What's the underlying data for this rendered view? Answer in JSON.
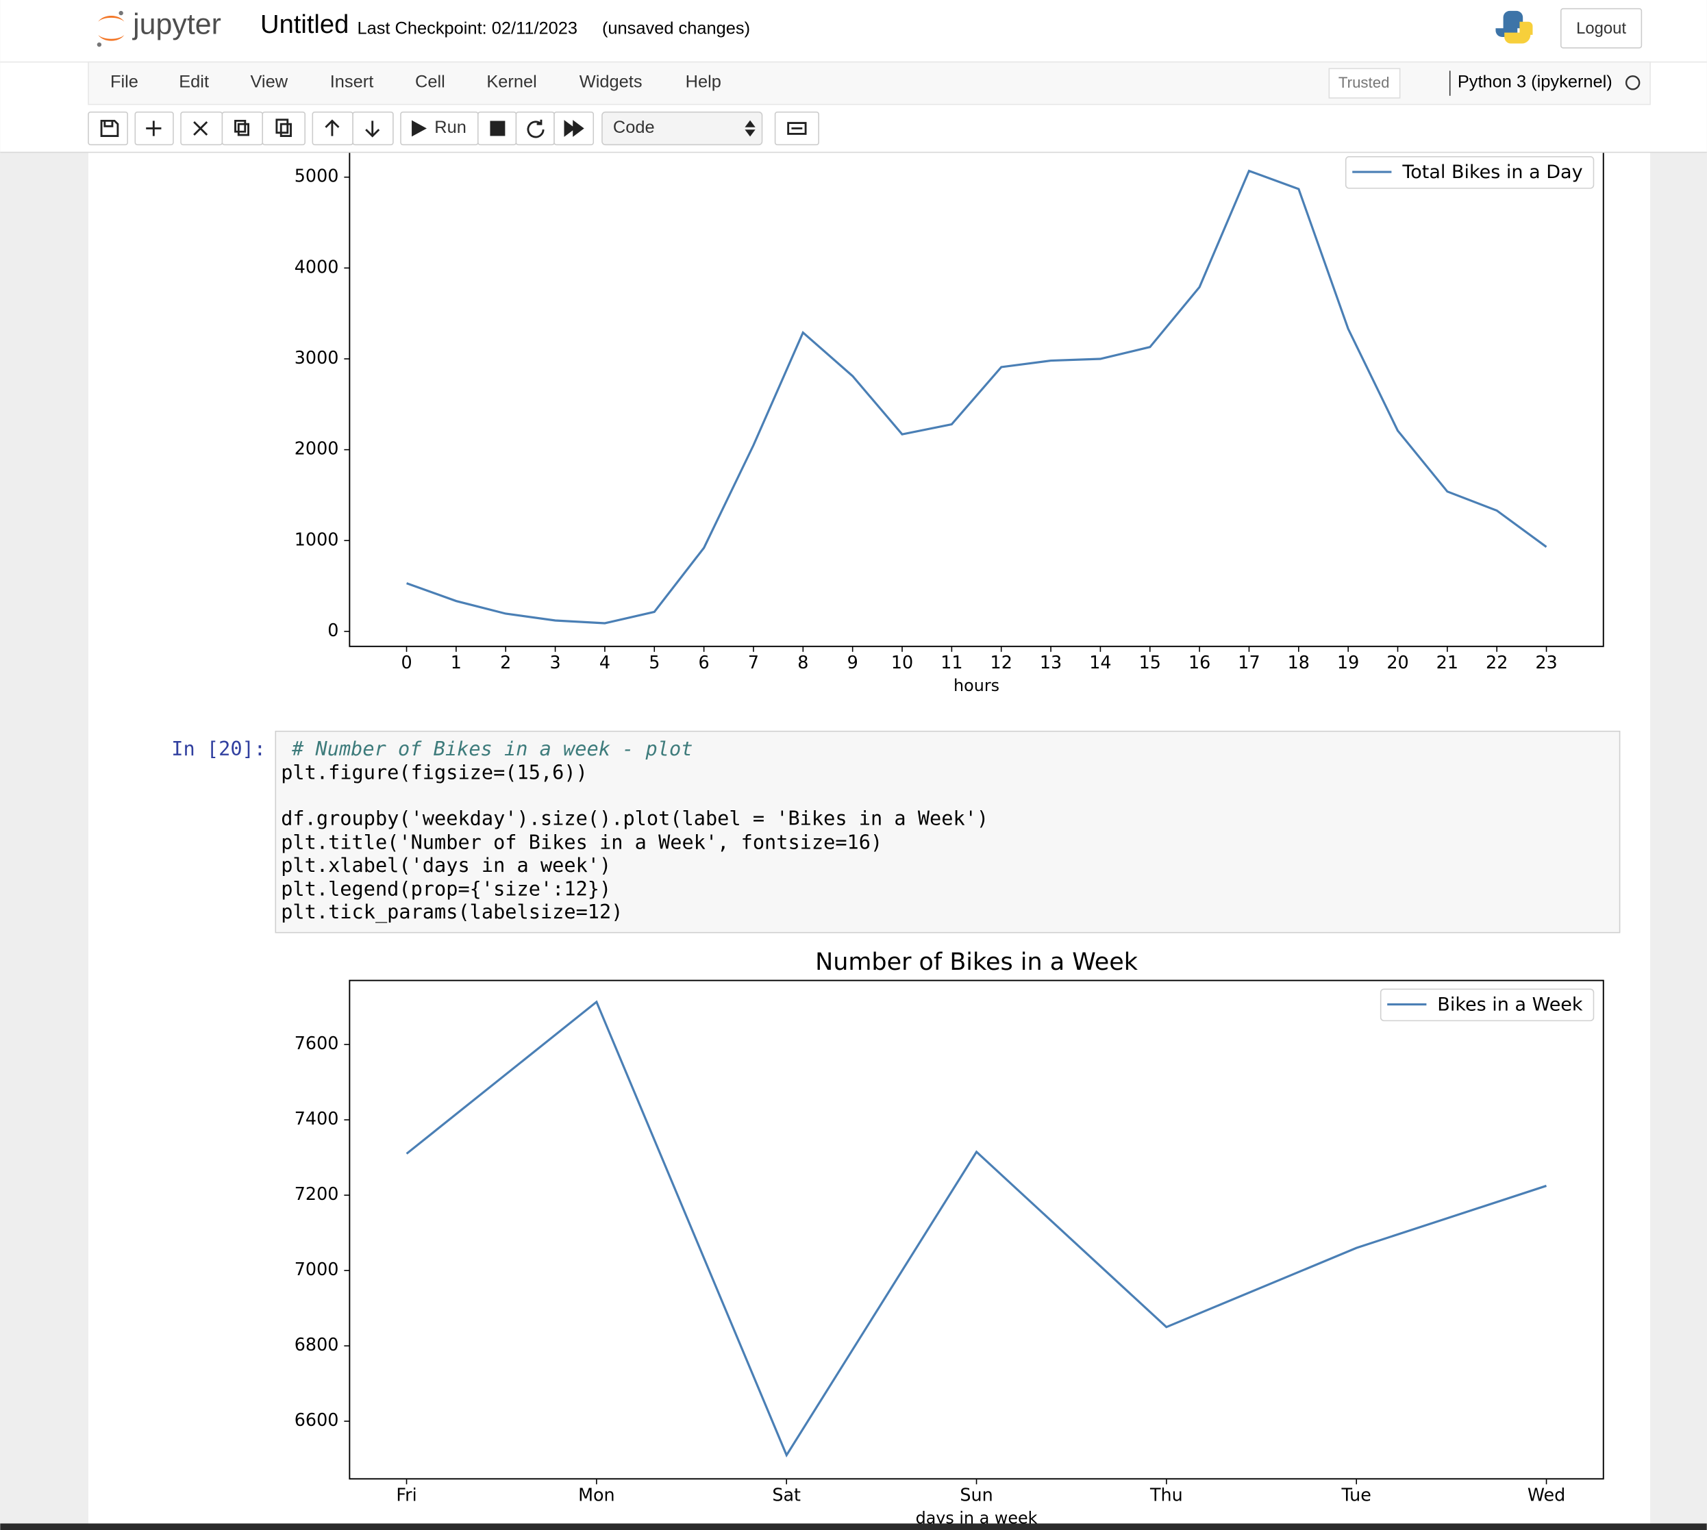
{
  "header": {
    "logo": "jupyter",
    "notebook_name": "Untitled",
    "checkpoint": "Last Checkpoint: 02/11/2023",
    "status": "(unsaved changes)",
    "logout": "Logout"
  },
  "menu": {
    "items": [
      "File",
      "Edit",
      "View",
      "Insert",
      "Cell",
      "Kernel",
      "Widgets",
      "Help"
    ],
    "trusted": "Trusted",
    "kernel": "Python 3 (ipykernel)"
  },
  "toolbar": {
    "run": "Run",
    "cell_type": "Code"
  },
  "cell": {
    "prompt": "In [20]:",
    "lines": [
      "# Number of Bikes in a week - plot",
      "plt.figure(figsize=(15,6))",
      "df.groupby('weekday').size().plot(label = 'Bikes in a Week')",
      "plt.title('Number of Bikes in a Week', fontsize=16)",
      "plt.xlabel('days in a week')",
      "plt.legend(prop={'size':12})",
      "plt.tick_params(labelsize=12)"
    ]
  },
  "chart_data": [
    {
      "type": "line",
      "x_label": "hours",
      "x": [
        0,
        1,
        2,
        3,
        4,
        5,
        6,
        7,
        8,
        9,
        10,
        11,
        12,
        13,
        14,
        15,
        16,
        17,
        18,
        19,
        20,
        21,
        22,
        23
      ],
      "series": [
        {
          "name": "Total Bikes in a Day",
          "color": "#4a7fb5",
          "values": [
            530,
            335,
            195,
            120,
            90,
            215,
            920,
            2050,
            3290,
            2810,
            2170,
            2280,
            2910,
            2980,
            3000,
            3130,
            3790,
            5070,
            4870,
            3330,
            2210,
            1540,
            1330,
            930
          ]
        }
      ],
      "xlim": [
        -1.15,
        24.15
      ],
      "xticks": [
        0,
        1,
        2,
        3,
        4,
        5,
        6,
        7,
        8,
        9,
        10,
        11,
        12,
        13,
        14,
        15,
        16,
        17,
        18,
        19,
        20,
        21,
        22,
        23
      ],
      "ylim": [
        -165,
        5321
      ],
      "yticks": [
        0,
        1000,
        2000,
        3000,
        4000,
        5000
      ],
      "legend": "upper right"
    },
    {
      "type": "line",
      "title": "Number of Bikes in a Week",
      "x_label": "days in a week",
      "categories": [
        "Fri",
        "Mon",
        "Sat",
        "Sun",
        "Thu",
        "Tue",
        "Wed"
      ],
      "series": [
        {
          "name": "Bikes in a Week",
          "color": "#4a7fb5",
          "values": [
            7310,
            7713,
            6510,
            7315,
            6850,
            7060,
            7225
          ]
        }
      ],
      "ylim": [
        6447,
        7770
      ],
      "yticks": [
        6600,
        6800,
        7000,
        7200,
        7400,
        7600
      ],
      "legend": "upper right"
    }
  ]
}
